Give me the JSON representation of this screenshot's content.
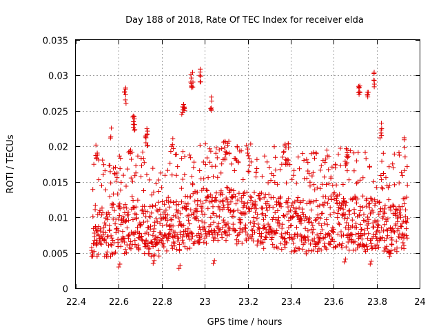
{
  "chart_data": {
    "type": "scatter",
    "title": "Day 188 of 2018, Rate Of TEC Index for receiver elda",
    "xlabel": "GPS time / hours",
    "ylabel": "ROTI / TECUs",
    "xlim": [
      22.4,
      24
    ],
    "ylim": [
      0,
      0.035
    ],
    "xticks": [
      "22.4",
      "22.6",
      "22.8",
      "23",
      "23.2",
      "23.4",
      "23.6",
      "23.8",
      "24"
    ],
    "yticks": [
      "0",
      "0.005",
      "0.01",
      "0.015",
      "0.02",
      "0.025",
      "0.03",
      "0.035"
    ],
    "grid": true,
    "marker": "+",
    "color": "#e00000",
    "series": [
      {
        "name": "ROTI",
        "x_start": 22.475,
        "x_end": 23.945,
        "n_per_step": 4,
        "step": 0.004,
        "baseline": [
          [
            22.48,
            0.0085
          ],
          [
            22.52,
            0.0095
          ],
          [
            22.56,
            0.0088
          ],
          [
            22.6,
            0.0092
          ],
          [
            22.64,
            0.0098
          ],
          [
            22.68,
            0.0105
          ],
          [
            22.72,
            0.0095
          ],
          [
            22.76,
            0.0088
          ],
          [
            22.8,
            0.0095
          ],
          [
            22.84,
            0.01
          ],
          [
            22.88,
            0.0098
          ],
          [
            22.92,
            0.0102
          ],
          [
            22.96,
            0.0108
          ],
          [
            23.0,
            0.0112
          ],
          [
            23.04,
            0.0105
          ],
          [
            23.08,
            0.0115
          ],
          [
            23.12,
            0.0112
          ],
          [
            23.16,
            0.0105
          ],
          [
            23.2,
            0.011
          ],
          [
            23.24,
            0.0108
          ],
          [
            23.28,
            0.0102
          ],
          [
            23.32,
            0.0105
          ],
          [
            23.36,
            0.01
          ],
          [
            23.4,
            0.0098
          ],
          [
            23.44,
            0.01
          ],
          [
            23.48,
            0.0095
          ],
          [
            23.52,
            0.0098
          ],
          [
            23.56,
            0.01
          ],
          [
            23.6,
            0.0105
          ],
          [
            23.64,
            0.0102
          ],
          [
            23.68,
            0.01
          ],
          [
            23.72,
            0.0102
          ],
          [
            23.76,
            0.0098
          ],
          [
            23.8,
            0.01
          ],
          [
            23.84,
            0.0095
          ],
          [
            23.88,
            0.0098
          ],
          [
            23.92,
            0.01
          ],
          [
            23.94,
            0.01
          ]
        ],
        "bursts": [
          {
            "x": 22.63,
            "y": 0.0283,
            "n": 8,
            "spread": 0.008
          },
          {
            "x": 22.67,
            "y": 0.0245,
            "n": 10,
            "spread": 0.012
          },
          {
            "x": 22.73,
            "y": 0.0225,
            "n": 10,
            "spread": 0.015
          },
          {
            "x": 22.9,
            "y": 0.026,
            "n": 10,
            "spread": 0.015
          },
          {
            "x": 22.94,
            "y": 0.0305,
            "n": 10,
            "spread": 0.01
          },
          {
            "x": 22.98,
            "y": 0.0315,
            "n": 6,
            "spread": 0.006
          },
          {
            "x": 23.03,
            "y": 0.027,
            "n": 6,
            "spread": 0.008
          },
          {
            "x": 23.1,
            "y": 0.021,
            "n": 12,
            "spread": 0.03
          },
          {
            "x": 23.38,
            "y": 0.0205,
            "n": 10,
            "spread": 0.02
          },
          {
            "x": 23.66,
            "y": 0.02,
            "n": 8,
            "spread": 0.02
          },
          {
            "x": 23.72,
            "y": 0.029,
            "n": 8,
            "spread": 0.01
          },
          {
            "x": 23.76,
            "y": 0.028,
            "n": 6,
            "spread": 0.01
          },
          {
            "x": 23.79,
            "y": 0.0308,
            "n": 6,
            "spread": 0.006
          },
          {
            "x": 23.82,
            "y": 0.0235,
            "n": 6,
            "spread": 0.01
          },
          {
            "x": 22.5,
            "y": 0.0205,
            "n": 6,
            "spread": 0.015
          },
          {
            "x": 22.56,
            "y": 0.023,
            "n": 3,
            "spread": 0.01
          },
          {
            "x": 22.85,
            "y": 0.0212,
            "n": 4,
            "spread": 0.01
          },
          {
            "x": 23.93,
            "y": 0.022,
            "n": 3,
            "spread": 0.006
          }
        ],
        "lows": [
          {
            "x": 22.6,
            "y": 0.003
          },
          {
            "x": 22.76,
            "y": 0.0035
          },
          {
            "x": 22.88,
            "y": 0.0028
          },
          {
            "x": 23.04,
            "y": 0.0035
          },
          {
            "x": 23.65,
            "y": 0.0037
          },
          {
            "x": 23.77,
            "y": 0.0034
          },
          {
            "x": 23.86,
            "y": 0.0045
          }
        ]
      }
    ]
  }
}
